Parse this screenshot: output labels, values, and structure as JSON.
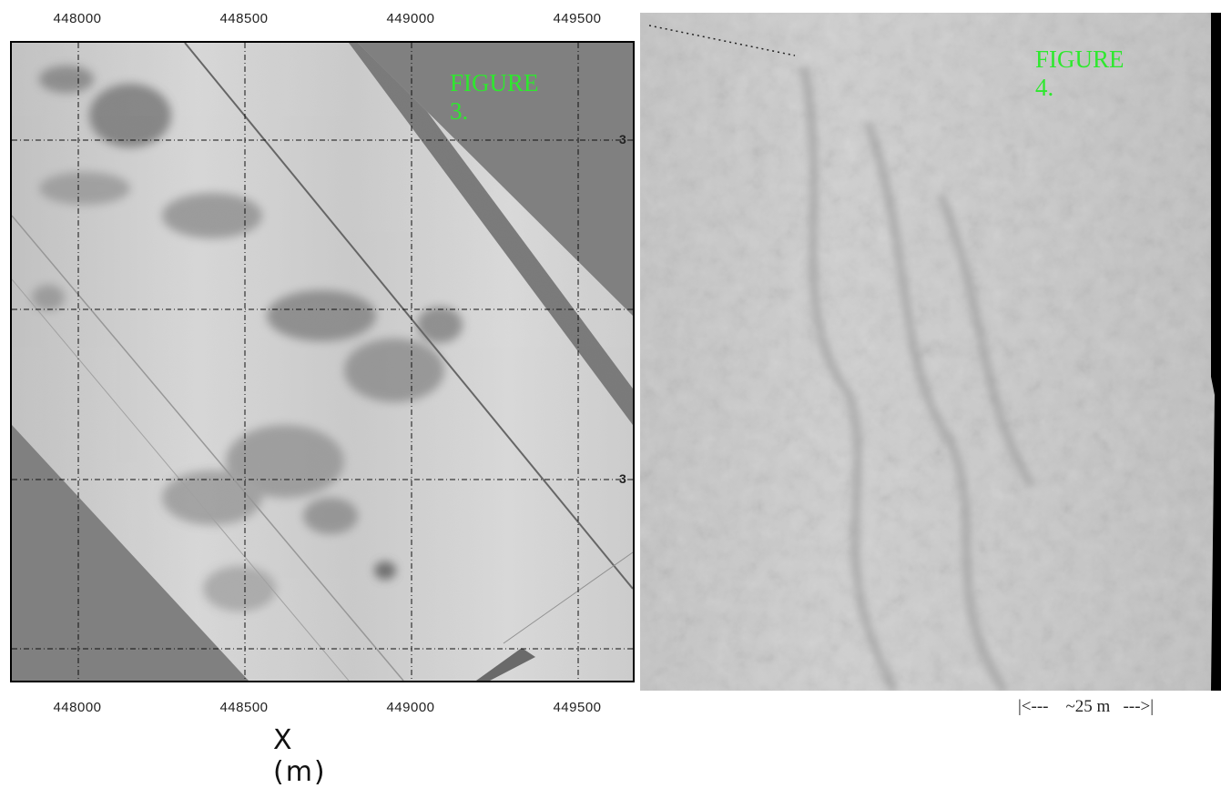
{
  "figure3": {
    "title": "FIGURE 3.",
    "x_ticks": [
      "448000",
      "448500",
      "449000",
      "449500"
    ],
    "y_tick_labels": [
      "3",
      "3"
    ],
    "x_axis_label": "X (m)"
  },
  "figure4": {
    "title": "FIGURE 4.",
    "scale_bar": "|<---    ~25 m   --->|"
  },
  "colors": {
    "title_green": "#2ee82e",
    "background_gray": "#808080",
    "survey_light": "#cfcfcf",
    "survey_dark": "#6e6e6e"
  }
}
